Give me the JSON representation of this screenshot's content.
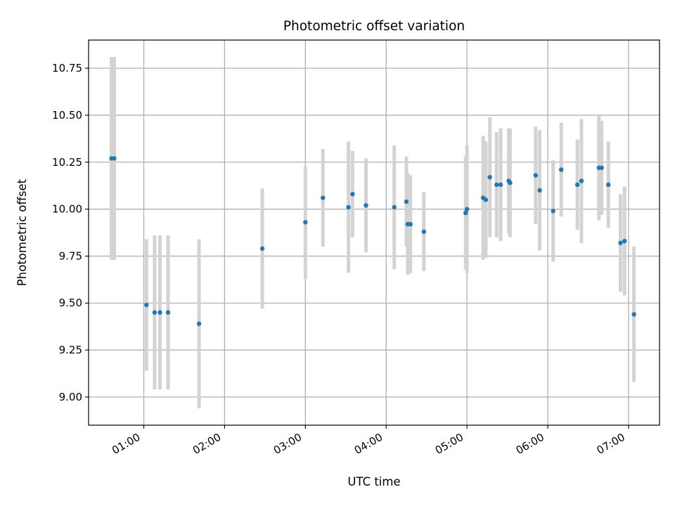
{
  "chart_data": {
    "type": "scatter",
    "title": "Photometric offset variation",
    "xlabel": "UTC time",
    "ylabel": "Photometric offset",
    "xlim": [
      "00:19",
      "07:23"
    ],
    "ylim": [
      8.85,
      10.9
    ],
    "grid": true,
    "x_ticks": [
      "01:00",
      "02:00",
      "03:00",
      "04:00",
      "05:00",
      "06:00",
      "07:00"
    ],
    "y_ticks": [
      "9.00",
      "9.25",
      "9.50",
      "9.75",
      "10.00",
      "10.25",
      "10.50",
      "10.75"
    ],
    "colors": {
      "point": "#1f77b4",
      "errorbar": "#d3d3d3",
      "grid": "#b0b0b0"
    },
    "series": [
      {
        "points": [
          {
            "x": "00:36",
            "y": 10.27,
            "err": 0.54
          },
          {
            "x": "00:38",
            "y": 10.27,
            "err": 0.54
          },
          {
            "x": "01:02",
            "y": 9.49,
            "err": 0.35
          },
          {
            "x": "01:08",
            "y": 9.45,
            "err": 0.41
          },
          {
            "x": "01:12",
            "y": 9.45,
            "err": 0.41
          },
          {
            "x": "01:18",
            "y": 9.45,
            "err": 0.41
          },
          {
            "x": "01:41",
            "y": 9.39,
            "err": 0.45
          },
          {
            "x": "02:28",
            "y": 9.79,
            "err": 0.32
          },
          {
            "x": "03:00",
            "y": 9.93,
            "err": 0.3
          },
          {
            "x": "03:13",
            "y": 10.06,
            "err": 0.26
          },
          {
            "x": "03:32",
            "y": 10.01,
            "err": 0.35
          },
          {
            "x": "03:35",
            "y": 10.08,
            "err": 0.23
          },
          {
            "x": "03:45",
            "y": 10.02,
            "err": 0.25
          },
          {
            "x": "04:06",
            "y": 10.01,
            "err": 0.33
          },
          {
            "x": "04:15",
            "y": 10.04,
            "err": 0.24
          },
          {
            "x": "04:16",
            "y": 9.92,
            "err": 0.27
          },
          {
            "x": "04:18",
            "y": 9.92,
            "err": 0.26
          },
          {
            "x": "04:28",
            "y": 9.88,
            "err": 0.21
          },
          {
            "x": "04:59",
            "y": 9.98,
            "err": 0.3
          },
          {
            "x": "05:00",
            "y": 10.0,
            "err": 0.34
          },
          {
            "x": "05:12",
            "y": 10.06,
            "err": 0.33
          },
          {
            "x": "05:14",
            "y": 10.05,
            "err": 0.31
          },
          {
            "x": "05:17",
            "y": 10.17,
            "err": 0.32
          },
          {
            "x": "05:22",
            "y": 10.13,
            "err": 0.28
          },
          {
            "x": "05:25",
            "y": 10.13,
            "err": 0.3
          },
          {
            "x": "05:31",
            "y": 10.15,
            "err": 0.28
          },
          {
            "x": "05:32",
            "y": 10.14,
            "err": 0.29
          },
          {
            "x": "05:51",
            "y": 10.18,
            "err": 0.26
          },
          {
            "x": "05:54",
            "y": 10.1,
            "err": 0.32
          },
          {
            "x": "06:04",
            "y": 9.99,
            "err": 0.27
          },
          {
            "x": "06:10",
            "y": 10.21,
            "err": 0.25
          },
          {
            "x": "06:22",
            "y": 10.13,
            "err": 0.24
          },
          {
            "x": "06:25",
            "y": 10.15,
            "err": 0.33
          },
          {
            "x": "06:38",
            "y": 10.22,
            "err": 0.28
          },
          {
            "x": "06:40",
            "y": 10.22,
            "err": 0.25
          },
          {
            "x": "06:45",
            "y": 10.13,
            "err": 0.23
          },
          {
            "x": "06:54",
            "y": 9.82,
            "err": 0.26
          },
          {
            "x": "06:57",
            "y": 9.83,
            "err": 0.29
          },
          {
            "x": "07:04",
            "y": 9.44,
            "err": 0.36
          }
        ]
      }
    ]
  }
}
